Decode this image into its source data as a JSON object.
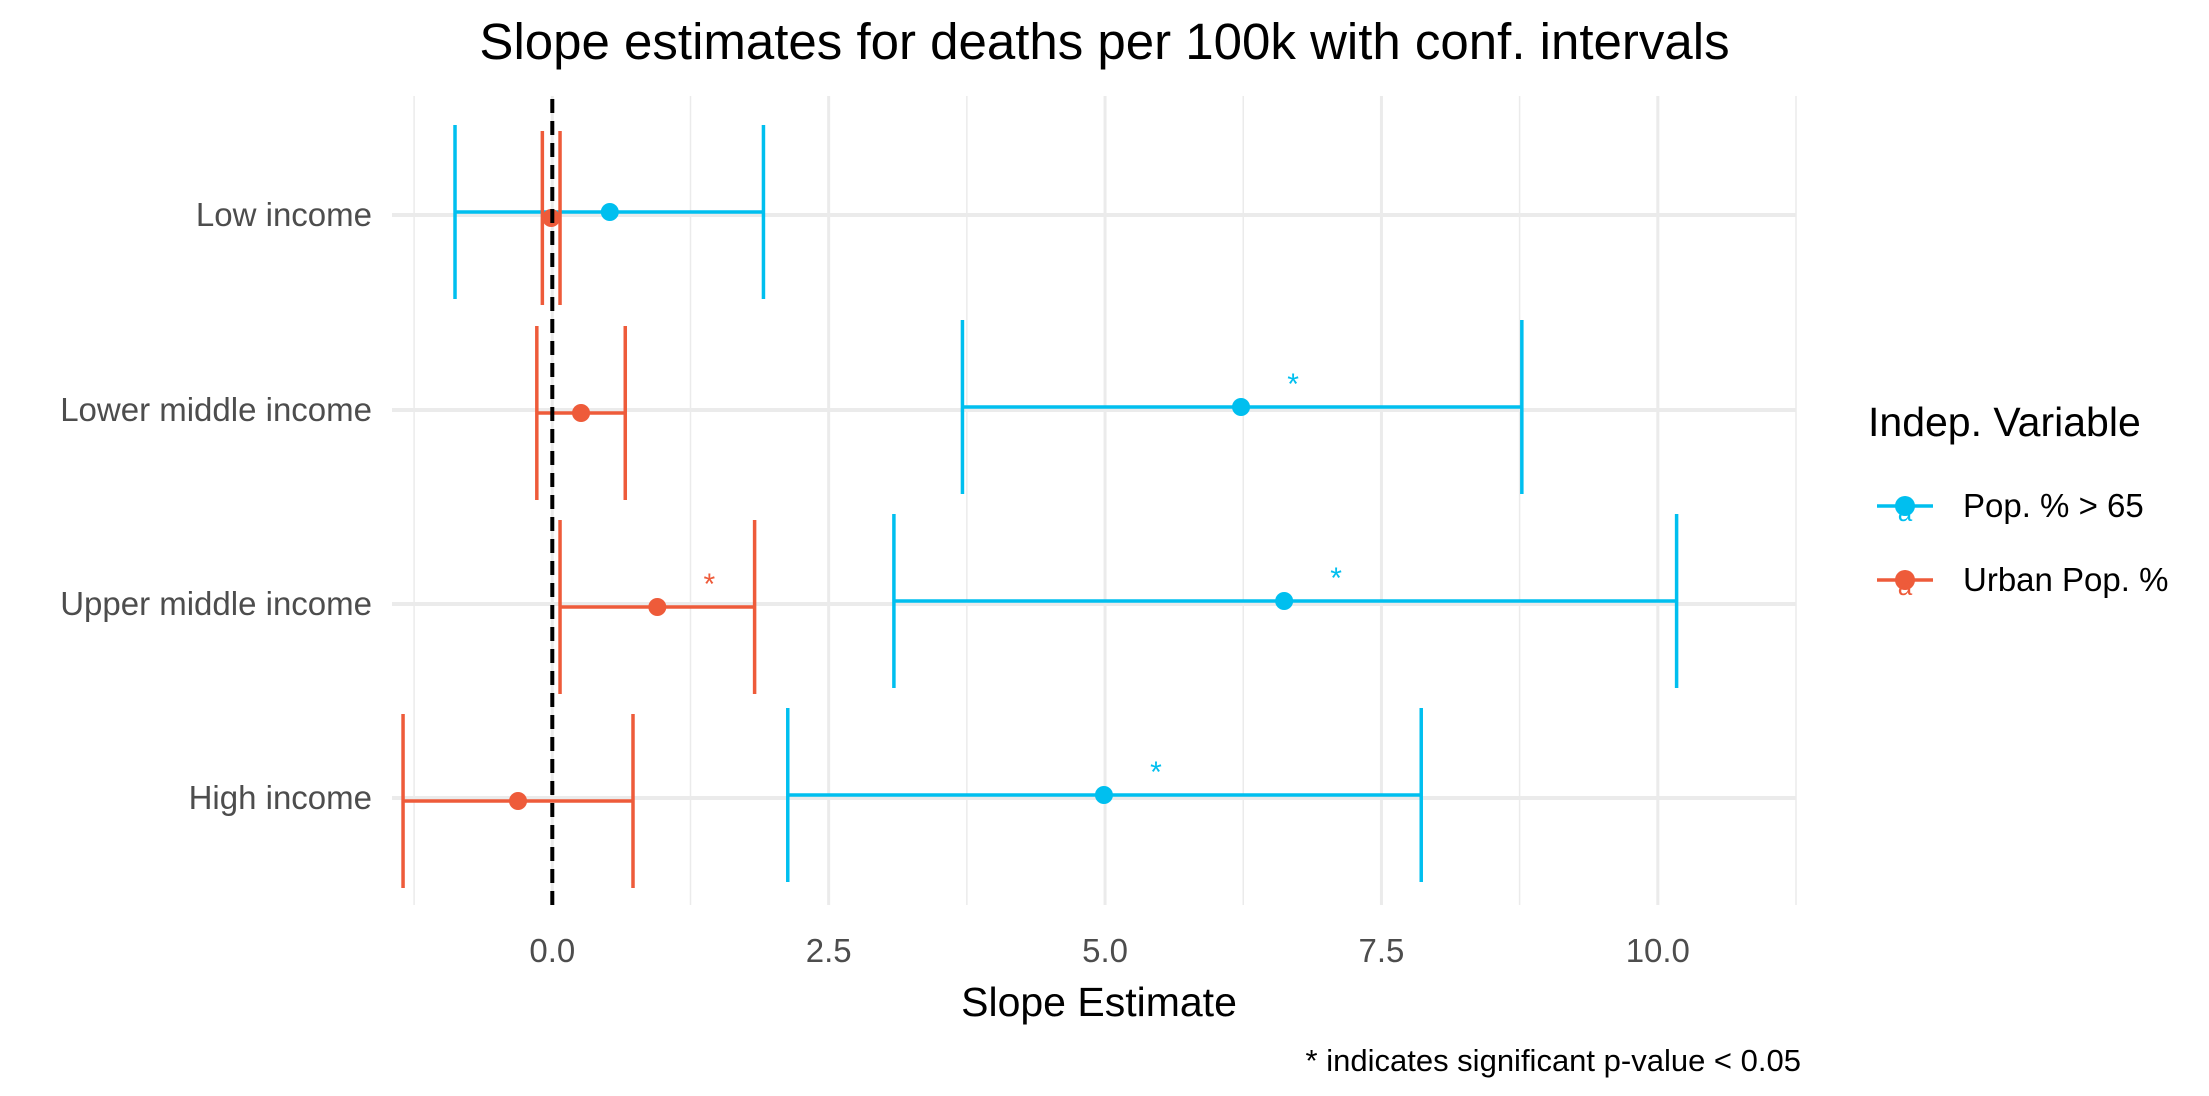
{
  "chart_data": {
    "type": "errorbar",
    "title": "Slope estimates for deaths per 100k with conf. intervals",
    "xlabel": "Slope Estimate",
    "ylabel": "",
    "caption": "* indicates significant p-value < 0.05",
    "xlim": [
      -1.45,
      11.25
    ],
    "xticks": [
      0.0,
      2.5,
      5.0,
      7.5,
      10.0
    ],
    "xtick_labels": [
      "0.0",
      "2.5",
      "5.0",
      "7.5",
      "10.0"
    ],
    "categories": [
      "Low income",
      "Lower middle income",
      "Upper middle income",
      "High income"
    ],
    "reference_line_x": 0,
    "grid": true,
    "legend": {
      "title": "Indep. Variable",
      "placement": "right"
    },
    "series": [
      {
        "name": "Pop. % > 65",
        "color": "#00BFEF",
        "estimate": [
          0.52,
          6.23,
          6.62,
          4.99
        ],
        "lower": [
          -0.88,
          3.71,
          3.09,
          2.13
        ],
        "upper": [
          1.91,
          8.77,
          10.17,
          7.86
        ],
        "significant": [
          false,
          true,
          true,
          true
        ],
        "marker_label": "*"
      },
      {
        "name": "Urban Pop. %",
        "color": "#EE5B3A",
        "estimate": [
          -0.01,
          0.26,
          0.95,
          -0.31
        ],
        "lower": [
          -0.09,
          -0.14,
          0.07,
          -1.35
        ],
        "upper": [
          0.07,
          0.66,
          1.83,
          0.73
        ],
        "significant": [
          false,
          false,
          true,
          false
        ],
        "marker_label": "*"
      }
    ]
  }
}
